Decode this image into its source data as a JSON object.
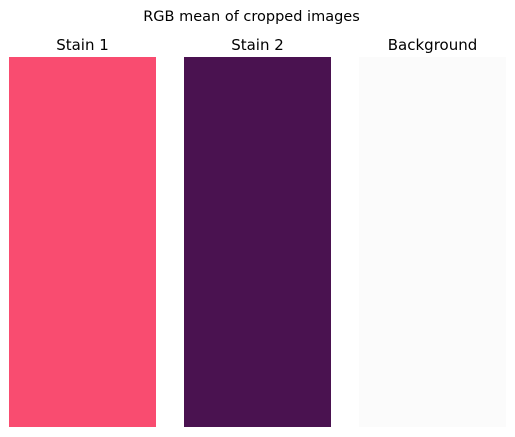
{
  "figure": {
    "title": "RGB mean of cropped images"
  },
  "panels": [
    {
      "title": "Stain 1",
      "color": "#F94C70"
    },
    {
      "title": "Stain 2",
      "color": "#4A1250"
    },
    {
      "title": "Background",
      "color": "#FBFBFB"
    }
  ]
}
